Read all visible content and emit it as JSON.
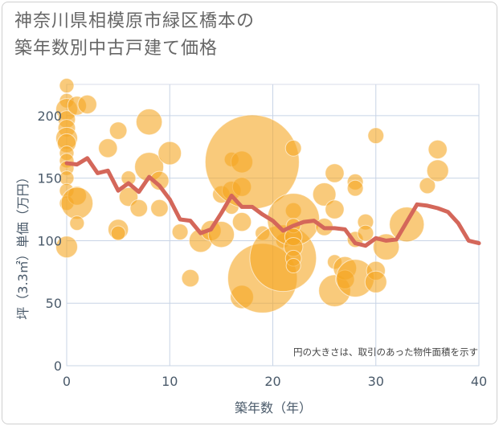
{
  "title_line1": "神奈川県相模原市緑区橋本の",
  "title_line2": "築年数別中古戸建て価格",
  "chart_data": {
    "type": "scatter",
    "title": "神奈川県相模原市緑区橋本の築年数別中古戸建て価格",
    "xlabel": "築年数（年）",
    "ylabel": "坪（3.3㎡）単価（万円）",
    "xlim": [
      0,
      40
    ],
    "ylim": [
      0,
      225
    ],
    "xticks": [
      "0",
      "10",
      "20",
      "30",
      "40"
    ],
    "yticks": [
      "0",
      "50",
      "100",
      "150",
      "200"
    ],
    "annotation": "円の大きさは、取引のあった物件面積を示す",
    "bubble_color": "#f5a623",
    "line_color": "#d4675a",
    "grid_color": "#c8d4e6",
    "points": [
      {
        "x": 0,
        "y": 224,
        "s": 1
      },
      {
        "x": 0,
        "y": 212,
        "s": 1
      },
      {
        "x": 0,
        "y": 205,
        "s": 1.5
      },
      {
        "x": 0,
        "y": 197,
        "s": 1.2
      },
      {
        "x": 0,
        "y": 190,
        "s": 1.2
      },
      {
        "x": 0,
        "y": 182,
        "s": 1.5
      },
      {
        "x": 0,
        "y": 178,
        "s": 1.3
      },
      {
        "x": 0,
        "y": 170,
        "s": 1
      },
      {
        "x": 0,
        "y": 164,
        "s": 1
      },
      {
        "x": 0,
        "y": 158,
        "s": 1
      },
      {
        "x": 0,
        "y": 150,
        "s": 1
      },
      {
        "x": 0,
        "y": 140,
        "s": 1
      },
      {
        "x": 0,
        "y": 130,
        "s": 1
      },
      {
        "x": 0,
        "y": 95,
        "s": 1.5
      },
      {
        "x": 1,
        "y": 208,
        "s": 1.3
      },
      {
        "x": 1,
        "y": 136,
        "s": 1.3
      },
      {
        "x": 1,
        "y": 130,
        "s": 2.2
      },
      {
        "x": 1,
        "y": 114,
        "s": 1
      },
      {
        "x": 2,
        "y": 209,
        "s": 1.3
      },
      {
        "x": 4,
        "y": 174,
        "s": 1.3
      },
      {
        "x": 5,
        "y": 188,
        "s": 1.2
      },
      {
        "x": 5,
        "y": 109,
        "s": 1.4
      },
      {
        "x": 5,
        "y": 106,
        "s": 1
      },
      {
        "x": 6,
        "y": 150,
        "s": 1
      },
      {
        "x": 6,
        "y": 135,
        "s": 1.3
      },
      {
        "x": 7,
        "y": 126,
        "s": 1.2
      },
      {
        "x": 8,
        "y": 195,
        "s": 1.8
      },
      {
        "x": 8,
        "y": 159,
        "s": 2
      },
      {
        "x": 9,
        "y": 148,
        "s": 1.3
      },
      {
        "x": 9,
        "y": 126,
        "s": 1.2
      },
      {
        "x": 10,
        "y": 170,
        "s": 1.6
      },
      {
        "x": 11,
        "y": 107,
        "s": 1.1
      },
      {
        "x": 12,
        "y": 70,
        "s": 1.2
      },
      {
        "x": 13,
        "y": 100,
        "s": 1.6
      },
      {
        "x": 14,
        "y": 108,
        "s": 1.4
      },
      {
        "x": 15,
        "y": 137,
        "s": 1.2
      },
      {
        "x": 15,
        "y": 105,
        "s": 1.8
      },
      {
        "x": 16,
        "y": 165,
        "s": 1
      },
      {
        "x": 16,
        "y": 140,
        "s": 1.3
      },
      {
        "x": 16,
        "y": 127,
        "s": 1
      },
      {
        "x": 17,
        "y": 163,
        "s": 1.5
      },
      {
        "x": 17,
        "y": 143,
        "s": 1.3
      },
      {
        "x": 17,
        "y": 115,
        "s": 1.3
      },
      {
        "x": 17,
        "y": 55,
        "s": 1.6
      },
      {
        "x": 18,
        "y": 163,
        "s": 6.5
      },
      {
        "x": 19,
        "y": 106,
        "s": 1
      },
      {
        "x": 19,
        "y": 70,
        "s": 4.8
      },
      {
        "x": 21,
        "y": 100,
        "s": 1
      },
      {
        "x": 21,
        "y": 86,
        "s": 4.6
      },
      {
        "x": 22,
        "y": 174,
        "s": 1.1
      },
      {
        "x": 22,
        "y": 124,
        "s": 1.1
      },
      {
        "x": 22,
        "y": 117,
        "s": 3.6
      },
      {
        "x": 22,
        "y": 112,
        "s": 1
      },
      {
        "x": 22,
        "y": 103,
        "s": 1.2
      },
      {
        "x": 22,
        "y": 95,
        "s": 1.3
      },
      {
        "x": 22,
        "y": 86,
        "s": 1.1
      },
      {
        "x": 22,
        "y": 80,
        "s": 1
      },
      {
        "x": 25,
        "y": 137,
        "s": 1.6
      },
      {
        "x": 25,
        "y": 111,
        "s": 1.2
      },
      {
        "x": 26,
        "y": 154,
        "s": 1.3
      },
      {
        "x": 26,
        "y": 125,
        "s": 1.3
      },
      {
        "x": 26,
        "y": 83,
        "s": 1
      },
      {
        "x": 26,
        "y": 60,
        "s": 2.2
      },
      {
        "x": 27,
        "y": 78,
        "s": 1.6
      },
      {
        "x": 27,
        "y": 69,
        "s": 1.3
      },
      {
        "x": 28,
        "y": 147,
        "s": 1.1
      },
      {
        "x": 28,
        "y": 142,
        "s": 1.1
      },
      {
        "x": 28,
        "y": 101,
        "s": 1.1
      },
      {
        "x": 28,
        "y": 70,
        "s": 2.6
      },
      {
        "x": 29,
        "y": 115,
        "s": 1.1
      },
      {
        "x": 29,
        "y": 106,
        "s": 1.1
      },
      {
        "x": 30,
        "y": 184,
        "s": 1.1
      },
      {
        "x": 30,
        "y": 76,
        "s": 1.3
      },
      {
        "x": 30,
        "y": 67,
        "s": 1.5
      },
      {
        "x": 31,
        "y": 95,
        "s": 1.8
      },
      {
        "x": 33,
        "y": 113,
        "s": 2.4
      },
      {
        "x": 35,
        "y": 144,
        "s": 1.1
      },
      {
        "x": 36,
        "y": 173,
        "s": 1.3
      },
      {
        "x": 36,
        "y": 156,
        "s": 1.5
      }
    ],
    "line": {
      "x": [
        0,
        1,
        2,
        3,
        4,
        5,
        6,
        7,
        8,
        9,
        10,
        11,
        12,
        13,
        14,
        15,
        16,
        17,
        18,
        19,
        20,
        21,
        22,
        23,
        24,
        25,
        26,
        27,
        28,
        29,
        30,
        31,
        32,
        33,
        34,
        35,
        36,
        37,
        38,
        39,
        40
      ],
      "y": [
        162,
        161,
        166,
        154,
        156,
        140,
        146,
        139,
        151,
        144,
        133,
        117,
        116,
        106,
        109,
        122,
        136,
        127,
        127,
        121,
        116,
        108,
        112,
        115,
        116,
        110,
        110,
        109,
        98,
        96,
        102,
        100,
        101,
        115,
        129,
        128,
        126,
        123,
        114,
        100,
        98
      ]
    }
  }
}
